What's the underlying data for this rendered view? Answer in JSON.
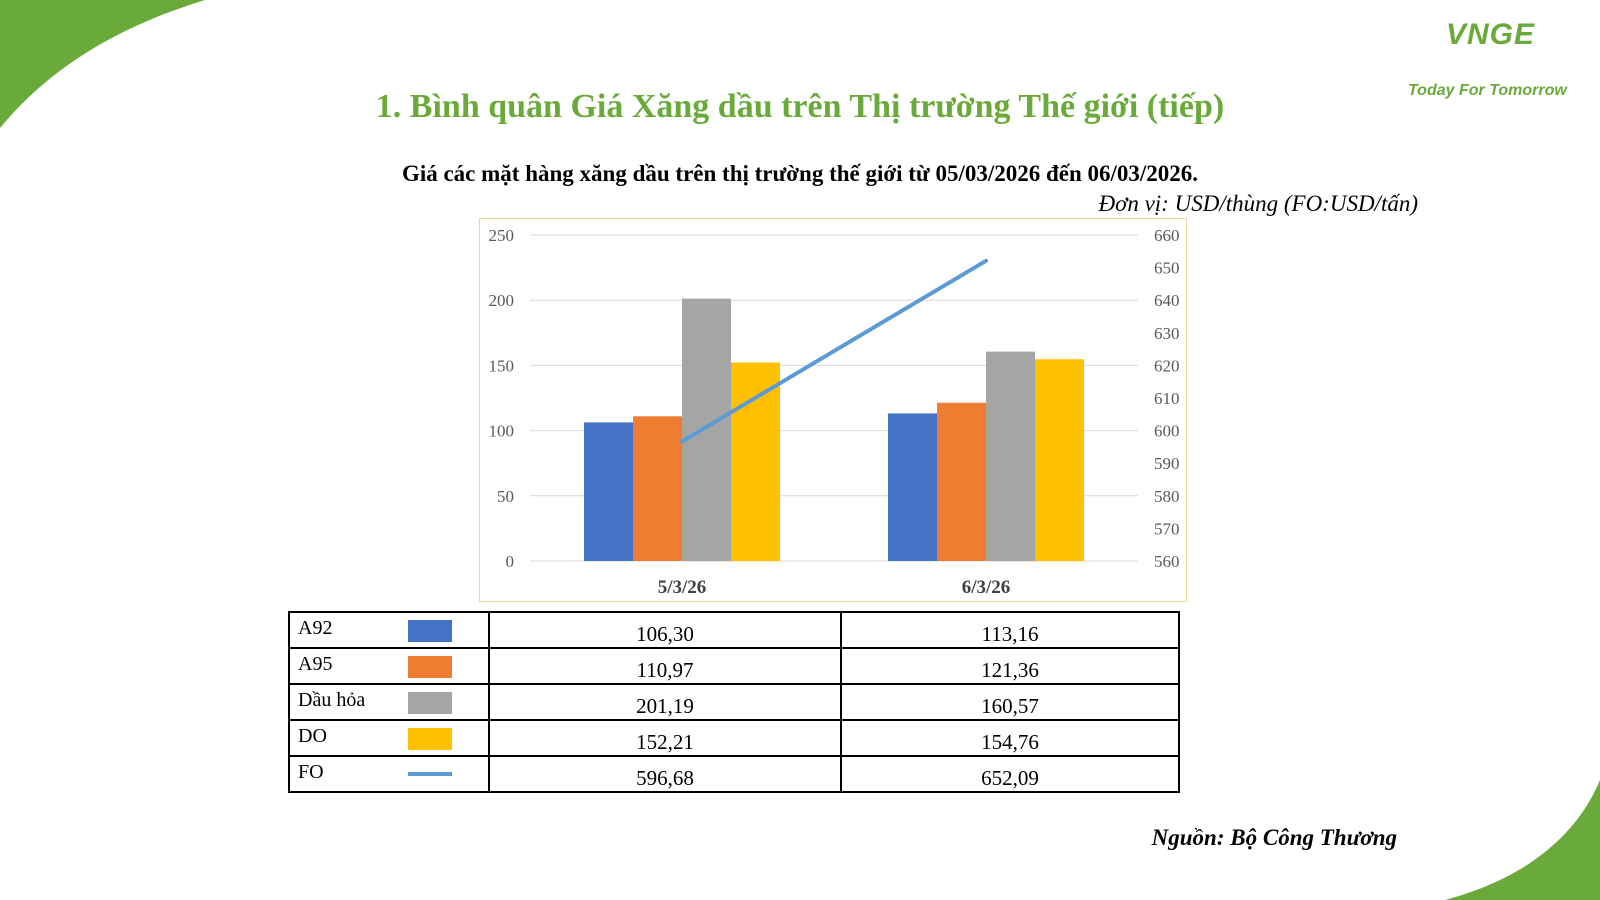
{
  "branding": {
    "logo_text": "VNGE",
    "tagline": "Today For Tomorrow",
    "accent_color": "#6aaa3a"
  },
  "title": "1. Bình quân Giá Xăng dầu trên Thị trường Thế giới (tiếp)",
  "subtitle": "Giá các mặt hàng xăng dầu trên thị trường thế giới từ 05/03/2026 đến 06/03/2026.",
  "unit_note": "Đơn vị: USD/thùng (FO:USD/tấn)",
  "source": "Nguồn: Bộ Công Thương",
  "chart_data": {
    "type": "bar",
    "categories": [
      "5/3/26",
      "6/3/26"
    ],
    "y_left": {
      "min": 0,
      "max": 250,
      "ticks": [
        "0",
        "50",
        "100",
        "150",
        "200",
        "250"
      ]
    },
    "y_right": {
      "min": 560,
      "max": 660,
      "ticks": [
        "560",
        "570",
        "580",
        "590",
        "600",
        "610",
        "620",
        "630",
        "640",
        "650",
        "660"
      ]
    },
    "grid": true,
    "series": [
      {
        "name": "A92",
        "kind": "bar",
        "axis": "left",
        "color": "#4472c4",
        "values": [
          106.3,
          113.16
        ],
        "labels": [
          "106,30",
          "113,16"
        ]
      },
      {
        "name": "A95",
        "kind": "bar",
        "axis": "left",
        "color": "#ed7d31",
        "values": [
          110.97,
          121.36
        ],
        "labels": [
          "110,97",
          "121,36"
        ]
      },
      {
        "name": "Dầu hỏa",
        "kind": "bar",
        "axis": "left",
        "color": "#a5a5a5",
        "values": [
          201.19,
          160.57
        ],
        "labels": [
          "201,19",
          "160,57"
        ]
      },
      {
        "name": "DO",
        "kind": "bar",
        "axis": "left",
        "color": "#ffc000",
        "values": [
          152.21,
          154.76
        ],
        "labels": [
          "152,21",
          "154,76"
        ]
      },
      {
        "name": "FO",
        "kind": "line",
        "axis": "right",
        "color": "#5b9bd5",
        "values": [
          596.68,
          652.09
        ],
        "labels": [
          "596,68",
          "652,09"
        ]
      }
    ]
  }
}
